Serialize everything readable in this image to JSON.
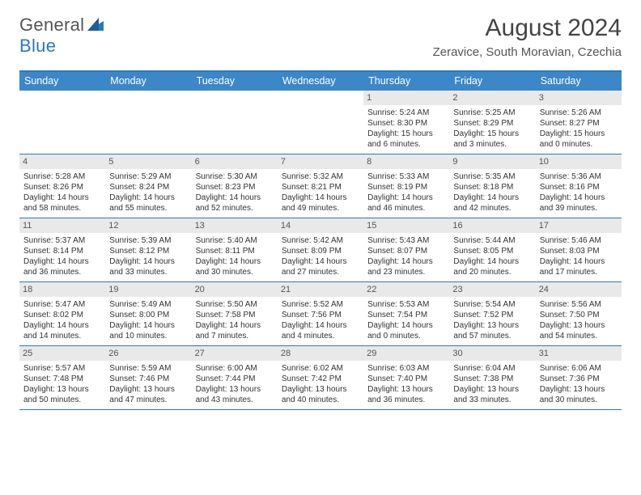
{
  "logo": {
    "text1": "General",
    "text2": "Blue"
  },
  "title": "August 2024",
  "location": "Zeravice, South Moravian, Czechia",
  "colors": {
    "header_bg": "#3b87c7",
    "border": "#2a7ab9",
    "daynum_bg": "#e9e9e9",
    "text": "#333333"
  },
  "day_headers": [
    "Sunday",
    "Monday",
    "Tuesday",
    "Wednesday",
    "Thursday",
    "Friday",
    "Saturday"
  ],
  "weeks": [
    [
      {
        "n": "",
        "empty": true
      },
      {
        "n": "",
        "empty": true
      },
      {
        "n": "",
        "empty": true
      },
      {
        "n": "",
        "empty": true
      },
      {
        "n": "1",
        "sunrise": "Sunrise: 5:24 AM",
        "sunset": "Sunset: 8:30 PM",
        "daylight": "Daylight: 15 hours and 6 minutes."
      },
      {
        "n": "2",
        "sunrise": "Sunrise: 5:25 AM",
        "sunset": "Sunset: 8:29 PM",
        "daylight": "Daylight: 15 hours and 3 minutes."
      },
      {
        "n": "3",
        "sunrise": "Sunrise: 5:26 AM",
        "sunset": "Sunset: 8:27 PM",
        "daylight": "Daylight: 15 hours and 0 minutes."
      }
    ],
    [
      {
        "n": "4",
        "sunrise": "Sunrise: 5:28 AM",
        "sunset": "Sunset: 8:26 PM",
        "daylight": "Daylight: 14 hours and 58 minutes."
      },
      {
        "n": "5",
        "sunrise": "Sunrise: 5:29 AM",
        "sunset": "Sunset: 8:24 PM",
        "daylight": "Daylight: 14 hours and 55 minutes."
      },
      {
        "n": "6",
        "sunrise": "Sunrise: 5:30 AM",
        "sunset": "Sunset: 8:23 PM",
        "daylight": "Daylight: 14 hours and 52 minutes."
      },
      {
        "n": "7",
        "sunrise": "Sunrise: 5:32 AM",
        "sunset": "Sunset: 8:21 PM",
        "daylight": "Daylight: 14 hours and 49 minutes."
      },
      {
        "n": "8",
        "sunrise": "Sunrise: 5:33 AM",
        "sunset": "Sunset: 8:19 PM",
        "daylight": "Daylight: 14 hours and 46 minutes."
      },
      {
        "n": "9",
        "sunrise": "Sunrise: 5:35 AM",
        "sunset": "Sunset: 8:18 PM",
        "daylight": "Daylight: 14 hours and 42 minutes."
      },
      {
        "n": "10",
        "sunrise": "Sunrise: 5:36 AM",
        "sunset": "Sunset: 8:16 PM",
        "daylight": "Daylight: 14 hours and 39 minutes."
      }
    ],
    [
      {
        "n": "11",
        "sunrise": "Sunrise: 5:37 AM",
        "sunset": "Sunset: 8:14 PM",
        "daylight": "Daylight: 14 hours and 36 minutes."
      },
      {
        "n": "12",
        "sunrise": "Sunrise: 5:39 AM",
        "sunset": "Sunset: 8:12 PM",
        "daylight": "Daylight: 14 hours and 33 minutes."
      },
      {
        "n": "13",
        "sunrise": "Sunrise: 5:40 AM",
        "sunset": "Sunset: 8:11 PM",
        "daylight": "Daylight: 14 hours and 30 minutes."
      },
      {
        "n": "14",
        "sunrise": "Sunrise: 5:42 AM",
        "sunset": "Sunset: 8:09 PM",
        "daylight": "Daylight: 14 hours and 27 minutes."
      },
      {
        "n": "15",
        "sunrise": "Sunrise: 5:43 AM",
        "sunset": "Sunset: 8:07 PM",
        "daylight": "Daylight: 14 hours and 23 minutes."
      },
      {
        "n": "16",
        "sunrise": "Sunrise: 5:44 AM",
        "sunset": "Sunset: 8:05 PM",
        "daylight": "Daylight: 14 hours and 20 minutes."
      },
      {
        "n": "17",
        "sunrise": "Sunrise: 5:46 AM",
        "sunset": "Sunset: 8:03 PM",
        "daylight": "Daylight: 14 hours and 17 minutes."
      }
    ],
    [
      {
        "n": "18",
        "sunrise": "Sunrise: 5:47 AM",
        "sunset": "Sunset: 8:02 PM",
        "daylight": "Daylight: 14 hours and 14 minutes."
      },
      {
        "n": "19",
        "sunrise": "Sunrise: 5:49 AM",
        "sunset": "Sunset: 8:00 PM",
        "daylight": "Daylight: 14 hours and 10 minutes."
      },
      {
        "n": "20",
        "sunrise": "Sunrise: 5:50 AM",
        "sunset": "Sunset: 7:58 PM",
        "daylight": "Daylight: 14 hours and 7 minutes."
      },
      {
        "n": "21",
        "sunrise": "Sunrise: 5:52 AM",
        "sunset": "Sunset: 7:56 PM",
        "daylight": "Daylight: 14 hours and 4 minutes."
      },
      {
        "n": "22",
        "sunrise": "Sunrise: 5:53 AM",
        "sunset": "Sunset: 7:54 PM",
        "daylight": "Daylight: 14 hours and 0 minutes."
      },
      {
        "n": "23",
        "sunrise": "Sunrise: 5:54 AM",
        "sunset": "Sunset: 7:52 PM",
        "daylight": "Daylight: 13 hours and 57 minutes."
      },
      {
        "n": "24",
        "sunrise": "Sunrise: 5:56 AM",
        "sunset": "Sunset: 7:50 PM",
        "daylight": "Daylight: 13 hours and 54 minutes."
      }
    ],
    [
      {
        "n": "25",
        "sunrise": "Sunrise: 5:57 AM",
        "sunset": "Sunset: 7:48 PM",
        "daylight": "Daylight: 13 hours and 50 minutes."
      },
      {
        "n": "26",
        "sunrise": "Sunrise: 5:59 AM",
        "sunset": "Sunset: 7:46 PM",
        "daylight": "Daylight: 13 hours and 47 minutes."
      },
      {
        "n": "27",
        "sunrise": "Sunrise: 6:00 AM",
        "sunset": "Sunset: 7:44 PM",
        "daylight": "Daylight: 13 hours and 43 minutes."
      },
      {
        "n": "28",
        "sunrise": "Sunrise: 6:02 AM",
        "sunset": "Sunset: 7:42 PM",
        "daylight": "Daylight: 13 hours and 40 minutes."
      },
      {
        "n": "29",
        "sunrise": "Sunrise: 6:03 AM",
        "sunset": "Sunset: 7:40 PM",
        "daylight": "Daylight: 13 hours and 36 minutes."
      },
      {
        "n": "30",
        "sunrise": "Sunrise: 6:04 AM",
        "sunset": "Sunset: 7:38 PM",
        "daylight": "Daylight: 13 hours and 33 minutes."
      },
      {
        "n": "31",
        "sunrise": "Sunrise: 6:06 AM",
        "sunset": "Sunset: 7:36 PM",
        "daylight": "Daylight: 13 hours and 30 minutes."
      }
    ]
  ]
}
